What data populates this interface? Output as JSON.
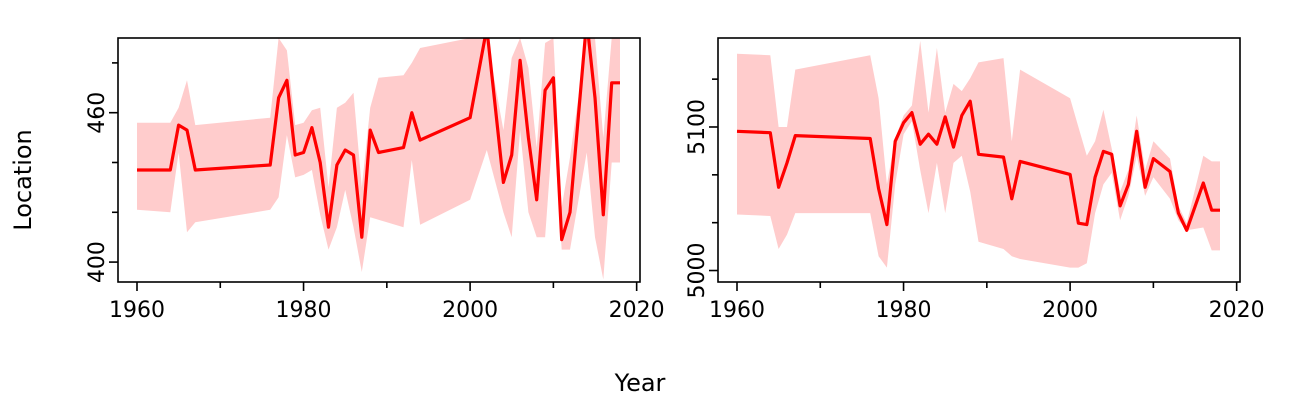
{
  "figure": {
    "xlabel": "Year",
    "ylabel": "Location"
  },
  "colors": {
    "line": "#ff0000",
    "band": "#ffcccc",
    "axis": "#000000"
  },
  "chart_data": [
    {
      "type": "line",
      "xlim": [
        1960,
        2018
      ],
      "ylim": [
        392,
        490
      ],
      "x_ticks": [
        1960,
        1980,
        2000,
        2020
      ],
      "x_tick_labels": [
        "1960",
        "1980",
        "2000",
        "2020"
      ],
      "y_ticks": [
        400,
        460
      ],
      "y_tick_labels": [
        "400",
        "460"
      ],
      "series": [
        {
          "x": [
            1960,
            1964,
            1965,
            1966,
            1967,
            1976,
            1977,
            1978,
            1979,
            1980,
            1981,
            1982,
            1983,
            1984,
            1985,
            1986,
            1987,
            1988,
            1989,
            1992,
            1993,
            1994,
            2000,
            2002,
            2004,
            2005,
            2006,
            2007,
            2008,
            2009,
            2010,
            2011,
            2012,
            2014,
            2015,
            2016,
            2017,
            2018
          ],
          "y": [
            437,
            437,
            455,
            453,
            437,
            439,
            466,
            473,
            443,
            444,
            454,
            440,
            414,
            439,
            445,
            443,
            410,
            453,
            444,
            446,
            460,
            449,
            458,
            494,
            432,
            443,
            481,
            450,
            425,
            469,
            474,
            409,
            420,
            497,
            466,
            419,
            472,
            472
          ],
          "lower": [
            421,
            420,
            444,
            412,
            416,
            421,
            426,
            451,
            434,
            435,
            437,
            419,
            405,
            414,
            429,
            414,
            396,
            418,
            417,
            414,
            441,
            415,
            425,
            445,
            420,
            410,
            453,
            420,
            410,
            410,
            456,
            405,
            405,
            444,
            410,
            393,
            440,
            440
          ],
          "upper": [
            456,
            456,
            462,
            473,
            455,
            458,
            501,
            485,
            455,
            456,
            461,
            462,
            430,
            462,
            464,
            468,
            430,
            462,
            474,
            475,
            480,
            486,
            496,
            497,
            453,
            482,
            509,
            478,
            446,
            488,
            496,
            422,
            442,
            520,
            520,
            450,
            512,
            512
          ]
        }
      ]
    },
    {
      "type": "line",
      "xlim": [
        1960,
        2018
      ],
      "ylim": [
        4992,
        5162
      ],
      "x_ticks": [
        1960,
        1980,
        2000,
        2020
      ],
      "x_tick_labels": [
        "1960",
        "1980",
        "2000",
        "2020"
      ],
      "y_ticks": [
        5000,
        5100
      ],
      "y_tick_labels": [
        "5000",
        "5100"
      ],
      "series": [
        {
          "x": [
            1960,
            1964,
            1965,
            1966,
            1967,
            1976,
            1977,
            1978,
            1979,
            1980,
            1981,
            1982,
            1983,
            1984,
            1985,
            1986,
            1987,
            1988,
            1989,
            1992,
            1993,
            1994,
            2000,
            2001,
            2002,
            2003,
            2004,
            2005,
            2006,
            2007,
            2008,
            2009,
            2010,
            2012,
            2013,
            2014,
            2016,
            2017,
            2018
          ],
          "y": [
            5097,
            5096,
            5058,
            5075,
            5094,
            5092,
            5057,
            5032,
            5090,
            5103,
            5110,
            5088,
            5095,
            5088,
            5107,
            5086,
            5108,
            5118,
            5081,
            5079,
            5050,
            5076,
            5067,
            5033,
            5032,
            5065,
            5083,
            5081,
            5045,
            5060,
            5097,
            5058,
            5078,
            5069,
            5040,
            5028,
            5061,
            5042,
            5042
          ],
          "lower": [
            5039,
            5038,
            5015,
            5025,
            5040,
            5040,
            5010,
            5002,
            5060,
            5095,
            5104,
            5070,
            5040,
            5075,
            5040,
            5075,
            5080,
            5055,
            5020,
            5015,
            5010,
            5008,
            5002,
            5002,
            5005,
            5040,
            5060,
            5068,
            5035,
            5052,
            5080,
            5052,
            5065,
            5050,
            5035,
            5028,
            5030,
            5014,
            5014
          ],
          "upper": [
            5151,
            5150,
            5100,
            5100,
            5140,
            5150,
            5120,
            5060,
            5092,
            5108,
            5115,
            5160,
            5110,
            5155,
            5110,
            5130,
            5125,
            5134,
            5145,
            5148,
            5090,
            5140,
            5120,
            5100,
            5080,
            5090,
            5112,
            5085,
            5055,
            5070,
            5108,
            5070,
            5090,
            5078,
            5045,
            5033,
            5080,
            5076,
            5076
          ]
        }
      ]
    }
  ]
}
